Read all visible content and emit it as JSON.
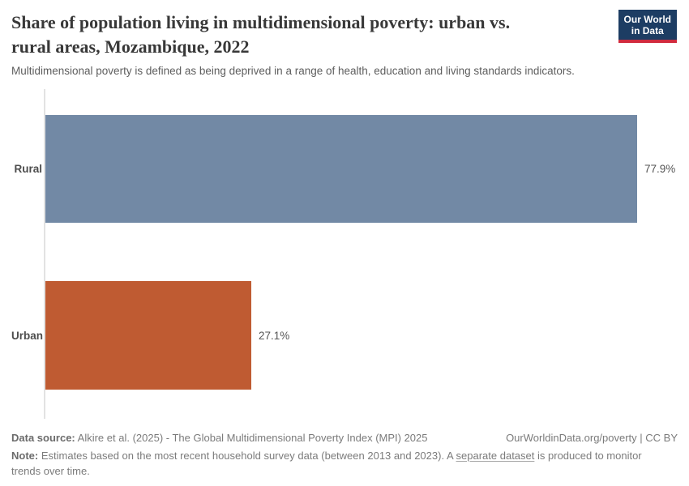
{
  "header": {
    "title_line1": "Share of population living in multidimensional poverty: urban vs.",
    "title_line2": "rural areas, Mozambique, 2022",
    "subtitle": "Multidimensional poverty is defined as being deprived in a range of health, education and living standards indicators.",
    "logo": {
      "line1": "Our World",
      "line2": "in Data"
    }
  },
  "chart_data": {
    "type": "bar",
    "orientation": "horizontal",
    "title": "Share of population living in multidimensional poverty: urban vs. rural areas, Mozambique, 2022",
    "categories": [
      "Rural",
      "Urban"
    ],
    "values": [
      77.9,
      27.1
    ],
    "value_labels": [
      "77.9%",
      "27.1%"
    ],
    "unit": "%",
    "xlim": [
      0,
      77.9
    ],
    "grid": false,
    "legend": "none",
    "bar_colors": [
      "#7289a5",
      "#bf5b32"
    ]
  },
  "footer": {
    "data_source_label": "Data source:",
    "data_source": "Alkire et al. (2025) - The Global Multidimensional Poverty Index (MPI) 2025",
    "attribution": "OurWorldinData.org/poverty | CC BY",
    "note_label": "Note:",
    "note_before_link": "Estimates based on the most recent household survey data (between 2013 and 2023). A",
    "note_link": "separate dataset",
    "note_after_link": "is produced to monitor trends over time."
  },
  "colors": {
    "rural_bar": "#7289a5",
    "urban_bar": "#bf5b32",
    "logo_bg": "#1d3d63",
    "logo_accent": "#d12b3e",
    "axis_line": "#e2e2e2"
  }
}
